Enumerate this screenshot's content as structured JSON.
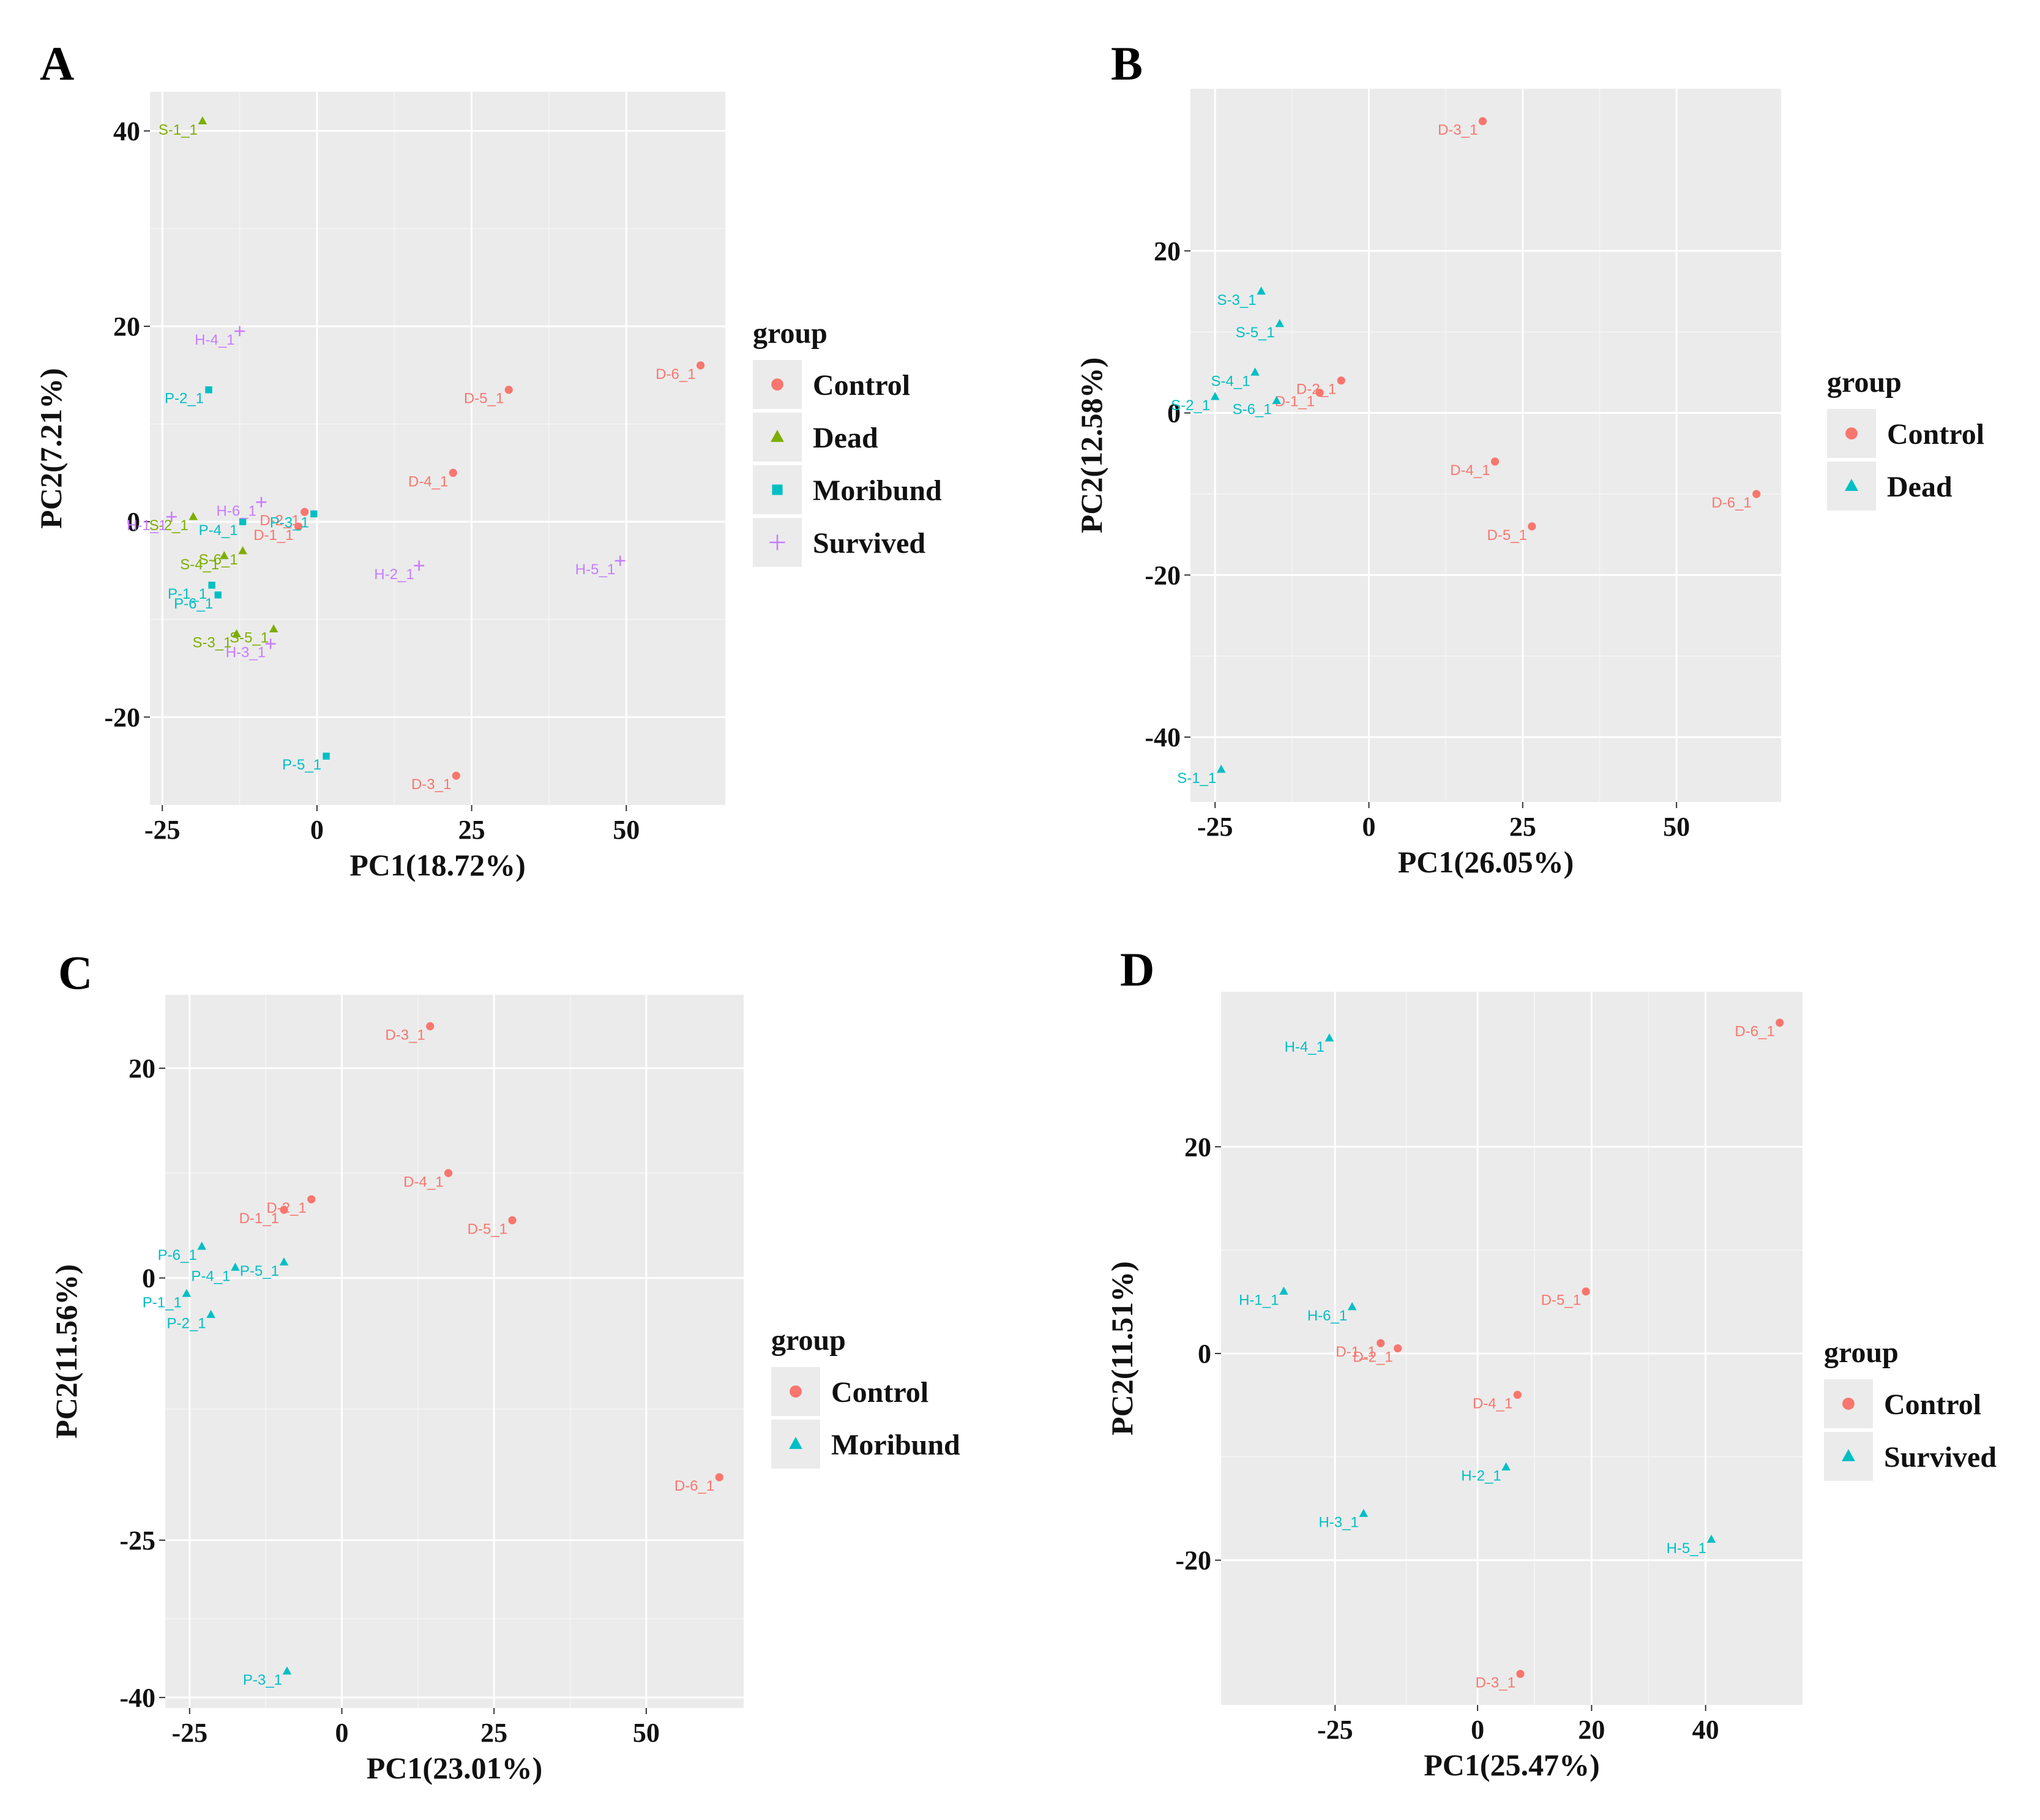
{
  "colors": {
    "Control": "#F8766D",
    "Dead": "#7CAE00",
    "Moribund": "#00BFC4",
    "Survived": "#C77CFF",
    "TwoGroupSecond": "#00BFC4"
  },
  "chart_data": [
    {
      "panel": "A",
      "type": "scatter",
      "xlabel": "PC1(18.72%)",
      "ylabel": "PC2(7.21%)",
      "xlim": [
        -27,
        66
      ],
      "ylim": [
        -29,
        44
      ],
      "xticks": [
        -25,
        0,
        25,
        50
      ],
      "yticks": [
        -20,
        0,
        20,
        40
      ],
      "legend_title": "group",
      "legend": [
        "Control",
        "Dead",
        "Moribund",
        "Survived"
      ],
      "shapes": {
        "Control": "circle",
        "Dead": "triangle",
        "Moribund": "square",
        "Survived": "plus"
      },
      "points": [
        {
          "label": "D-6_1",
          "group": "Control",
          "x": 62,
          "y": 16
        },
        {
          "label": "D-5_1",
          "group": "Control",
          "x": 31,
          "y": 13.5
        },
        {
          "label": "D-4_1",
          "group": "Control",
          "x": 22,
          "y": 5
        },
        {
          "label": "D-2_1",
          "group": "Control",
          "x": -2,
          "y": 1
        },
        {
          "label": "D-1_1",
          "group": "Control",
          "x": -3,
          "y": -0.5
        },
        {
          "label": "D-3_1",
          "group": "Control",
          "x": 22.5,
          "y": -26
        },
        {
          "label": "S-1_1",
          "group": "Dead",
          "x": -18.5,
          "y": 41
        },
        {
          "label": "S-2_1",
          "group": "Dead",
          "x": -20,
          "y": 0.5
        },
        {
          "label": "S-4_1",
          "group": "Dead",
          "x": -15,
          "y": -3.5
        },
        {
          "label": "S-6_1",
          "group": "Dead",
          "x": -12,
          "y": -3
        },
        {
          "label": "S-5_1",
          "group": "Dead",
          "x": -7,
          "y": -11
        },
        {
          "label": "S-3_1",
          "group": "Dead",
          "x": -13,
          "y": -11.5
        },
        {
          "label": "P-2_1",
          "group": "Moribund",
          "x": -17.5,
          "y": 13.5
        },
        {
          "label": "P-3_1",
          "group": "Moribund",
          "x": -0.5,
          "y": 0.8
        },
        {
          "label": "P-4_1",
          "group": "Moribund",
          "x": -12,
          "y": 0
        },
        {
          "label": "P-1_1",
          "group": "Moribund",
          "x": -17,
          "y": -6.5
        },
        {
          "label": "P-6_1",
          "group": "Moribund",
          "x": -16,
          "y": -7.5
        },
        {
          "label": "P-5_1",
          "group": "Moribund",
          "x": 1.5,
          "y": -24
        },
        {
          "label": "H-4_1",
          "group": "Survived",
          "x": -12.5,
          "y": 19.5
        },
        {
          "label": "H-6_1",
          "group": "Survived",
          "x": -9,
          "y": 2
        },
        {
          "label": "H-1_1",
          "group": "Survived",
          "x": -23.5,
          "y": 0.5
        },
        {
          "label": "H-5_1",
          "group": "Survived",
          "x": 49,
          "y": -4
        },
        {
          "label": "H-2_1",
          "group": "Survived",
          "x": 16.5,
          "y": -4.5
        },
        {
          "label": "H-3_1",
          "group": "Survived",
          "x": -7.5,
          "y": -12.5
        }
      ]
    },
    {
      "panel": "B",
      "type": "scatter",
      "xlabel": "PC1(26.05%)",
      "ylabel": "PC2(12.58%)",
      "xlim": [
        -29,
        67
      ],
      "ylim": [
        -48,
        40
      ],
      "xticks": [
        -25,
        0,
        25,
        50
      ],
      "yticks": [
        -40,
        -20,
        0,
        20
      ],
      "legend_title": "group",
      "legend": [
        "Control",
        "Dead"
      ],
      "shapes": {
        "Control": "circle",
        "Dead": "triangle"
      },
      "points": [
        {
          "label": "D-3_1",
          "group": "Control",
          "x": 18.5,
          "y": 36
        },
        {
          "label": "D-2_1",
          "group": "Control",
          "x": -4.5,
          "y": 4
        },
        {
          "label": "D-1_1",
          "group": "Control",
          "x": -8,
          "y": 2.5
        },
        {
          "label": "D-4_1",
          "group": "Control",
          "x": 20.5,
          "y": -6
        },
        {
          "label": "D-5_1",
          "group": "Control",
          "x": 26.5,
          "y": -14
        },
        {
          "label": "D-6_1",
          "group": "Control",
          "x": 63,
          "y": -10
        },
        {
          "label": "S-3_1",
          "group": "Dead",
          "x": -17.5,
          "y": 15
        },
        {
          "label": "S-5_1",
          "group": "Dead",
          "x": -14.5,
          "y": 11
        },
        {
          "label": "S-4_1",
          "group": "Dead",
          "x": -18.5,
          "y": 5
        },
        {
          "label": "S-2_1",
          "group": "Dead",
          "x": -25,
          "y": 2
        },
        {
          "label": "S-6_1",
          "group": "Dead",
          "x": -15,
          "y": 1.5
        },
        {
          "label": "S-1_1",
          "group": "Dead",
          "x": -24,
          "y": -44
        }
      ]
    },
    {
      "panel": "C",
      "type": "scatter",
      "xlabel": "PC1(23.01%)",
      "ylabel": "PC2(11.56%)",
      "xlim": [
        -29,
        66
      ],
      "ylim": [
        -41,
        27
      ],
      "xticks": [
        -25,
        0,
        25,
        50
      ],
      "yticks": [
        -40,
        -25,
        0,
        20
      ],
      "legend_title": "group",
      "legend": [
        "Control",
        "Moribund"
      ],
      "shapes": {
        "Control": "circle",
        "Moribund": "triangle"
      },
      "points": [
        {
          "label": "D-3_1",
          "group": "Control",
          "x": 14.5,
          "y": 24
        },
        {
          "label": "D-4_1",
          "group": "Control",
          "x": 17.5,
          "y": 10
        },
        {
          "label": "D-2_1",
          "group": "Control",
          "x": -5,
          "y": 7.5
        },
        {
          "label": "D-1_1",
          "group": "Control",
          "x": -9.5,
          "y": 6.5
        },
        {
          "label": "D-5_1",
          "group": "Control",
          "x": 28,
          "y": 5.5
        },
        {
          "label": "D-6_1",
          "group": "Control",
          "x": 62,
          "y": -19
        },
        {
          "label": "P-6_1",
          "group": "Moribund",
          "x": -23,
          "y": 3
        },
        {
          "label": "P-5_1",
          "group": "Moribund",
          "x": -9.5,
          "y": 1.5
        },
        {
          "label": "P-4_1",
          "group": "Moribund",
          "x": -17.5,
          "y": 1
        },
        {
          "label": "P-1_1",
          "group": "Moribund",
          "x": -25.5,
          "y": -1.5
        },
        {
          "label": "P-2_1",
          "group": "Moribund",
          "x": -21.5,
          "y": -3.5
        },
        {
          "label": "P-3_1",
          "group": "Moribund",
          "x": -9,
          "y": -37.5
        }
      ]
    },
    {
      "panel": "D",
      "type": "scatter",
      "xlabel": "PC1(25.47%)",
      "ylabel": "PC2(11.51%)",
      "xlim": [
        -45,
        57
      ],
      "ylim": [
        -34,
        35
      ],
      "xticks": [
        -25,
        0,
        20,
        40
      ],
      "yticks": [
        -20,
        0,
        20
      ],
      "legend_title": "group",
      "legend": [
        "Control",
        "Survived"
      ],
      "shapes": {
        "Control": "circle",
        "Survived": "triangle"
      },
      "points": [
        {
          "label": "D-6_1",
          "group": "Control",
          "x": 53,
          "y": 32
        },
        {
          "label": "D-5_1",
          "group": "Control",
          "x": 19,
          "y": 6
        },
        {
          "label": "D-1_1",
          "group": "Control",
          "x": -17,
          "y": 1
        },
        {
          "label": "D-2_1",
          "group": "Control",
          "x": -14,
          "y": 0.5
        },
        {
          "label": "D-4_1",
          "group": "Control",
          "x": 7,
          "y": -4
        },
        {
          "label": "D-3_1",
          "group": "Control",
          "x": 7.5,
          "y": -31
        },
        {
          "label": "H-4_1",
          "group": "Survived",
          "x": -26,
          "y": 30.5
        },
        {
          "label": "H-1_1",
          "group": "Survived",
          "x": -34,
          "y": 6
        },
        {
          "label": "H-6_1",
          "group": "Survived",
          "x": -22,
          "y": 4.5
        },
        {
          "label": "H-2_1",
          "group": "Survived",
          "x": 5,
          "y": -11
        },
        {
          "label": "H-3_1",
          "group": "Survived",
          "x": -20,
          "y": -15.5
        },
        {
          "label": "H-5_1",
          "group": "Survived",
          "x": 41,
          "y": -18
        }
      ]
    }
  ]
}
